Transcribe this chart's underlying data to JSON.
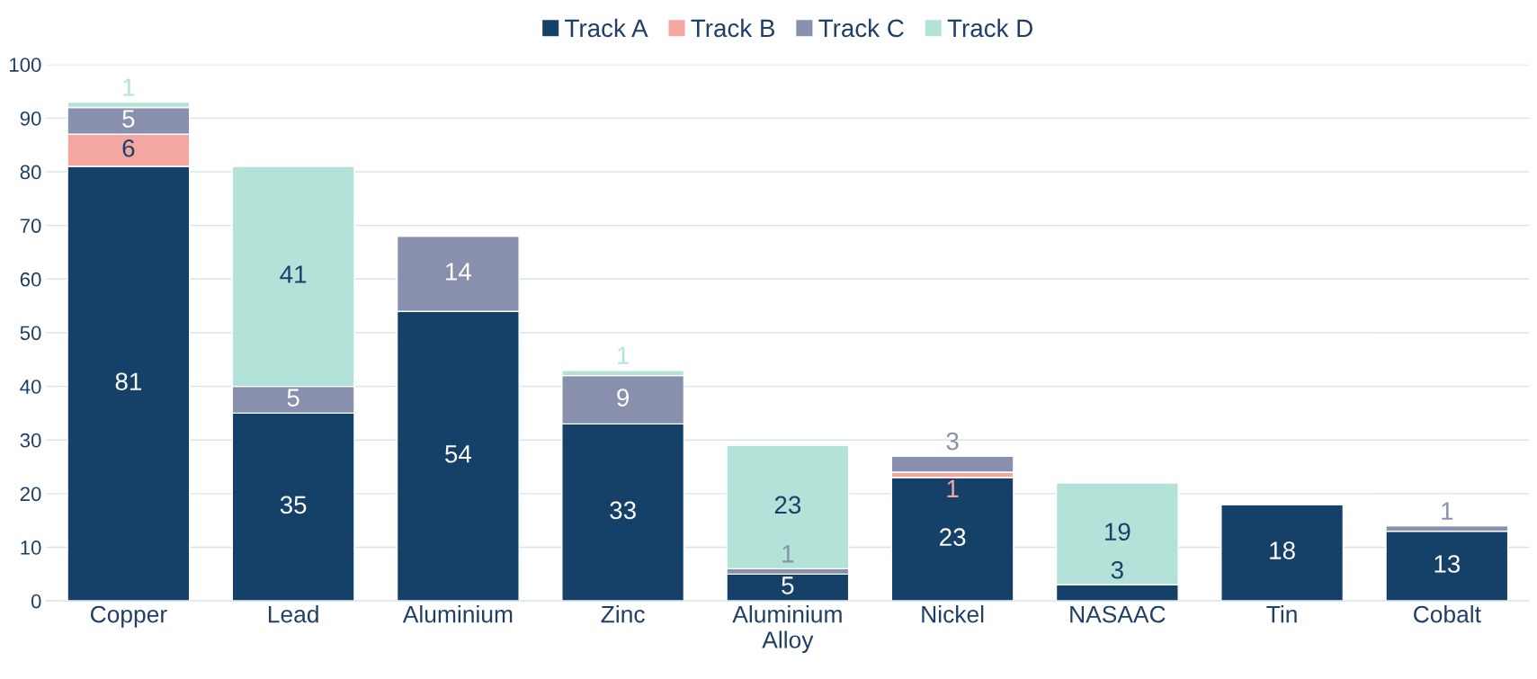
{
  "chart_data": {
    "type": "bar",
    "stacked": true,
    "categories": [
      "Copper",
      "Lead",
      "Aluminium",
      "Zinc",
      "Aluminium\nAlloy",
      "Nickel",
      "NASAAC",
      "Tin",
      "Cobalt"
    ],
    "series": [
      {
        "name": "Track A",
        "color": "#154169",
        "values": [
          81,
          35,
          54,
          33,
          5,
          23,
          3,
          18,
          13
        ],
        "value_labels": [
          "81",
          "35",
          "54",
          "33",
          "5",
          "23",
          "3",
          "18",
          "13"
        ]
      },
      {
        "name": "Track B",
        "color": "#f4a7a0",
        "values": [
          6,
          null,
          null,
          null,
          null,
          1,
          null,
          null,
          null
        ],
        "value_labels": [
          "6",
          null,
          null,
          null,
          null,
          "1",
          null,
          null,
          null
        ]
      },
      {
        "name": "Track C",
        "color": "#8890ad",
        "values": [
          5,
          5,
          14,
          9,
          1,
          3,
          null,
          null,
          1
        ],
        "value_labels": [
          "5",
          "5",
          "14",
          "9",
          "1",
          "3",
          null,
          null,
          "1"
        ]
      },
      {
        "name": "Track D",
        "color": "#b3e3d8",
        "values": [
          1,
          41,
          null,
          1,
          23,
          null,
          19,
          null,
          null
        ],
        "value_labels": [
          "1",
          "41",
          null,
          "1",
          "23",
          null,
          "19",
          null,
          null
        ]
      }
    ],
    "ylim": [
      0,
      100
    ],
    "yticks": [
      0,
      10,
      20,
      30,
      40,
      50,
      60,
      70,
      80,
      90,
      100
    ],
    "grid": "y",
    "legend": "top"
  }
}
